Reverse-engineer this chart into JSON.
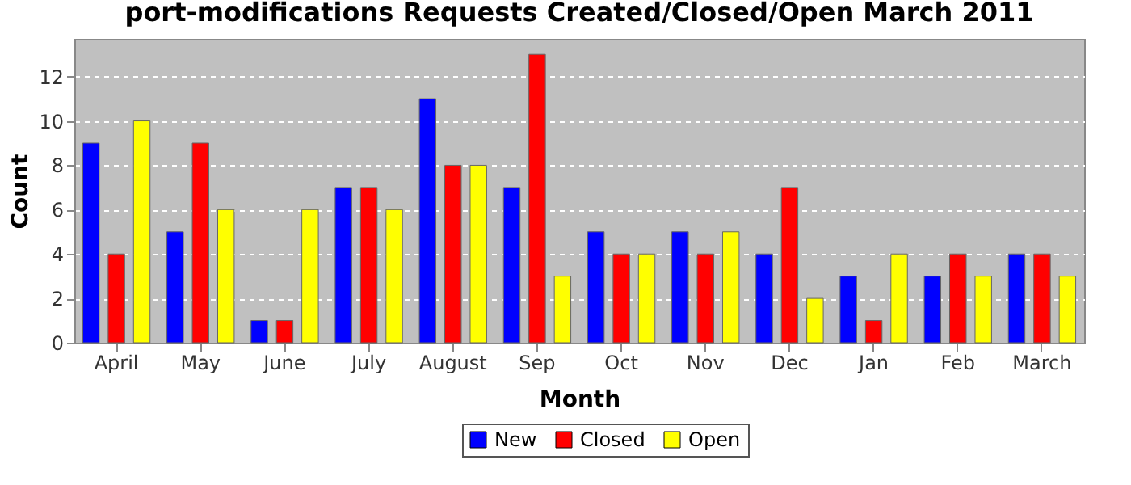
{
  "chart_data": {
    "type": "bar",
    "title": "port-modifications Requests Created/Closed/Open March 2011",
    "xlabel": "Month",
    "ylabel": "Count",
    "categories": [
      "April",
      "May",
      "June",
      "July",
      "August",
      "Sep",
      "Oct",
      "Nov",
      "Dec",
      "Jan",
      "Feb",
      "March"
    ],
    "series": [
      {
        "name": "New",
        "color": "#0000ff",
        "values": [
          9,
          5,
          1,
          7,
          11,
          7,
          5,
          5,
          4,
          3,
          3,
          4
        ]
      },
      {
        "name": "Closed",
        "color": "#ff0000",
        "values": [
          4,
          9,
          1,
          7,
          8,
          13,
          4,
          4,
          7,
          1,
          4,
          4
        ]
      },
      {
        "name": "Open",
        "color": "#ffff00",
        "values": [
          10,
          6,
          6,
          6,
          8,
          3,
          4,
          5,
          2,
          4,
          3,
          3
        ]
      }
    ],
    "ylim": [
      0,
      13.7
    ],
    "yticks": [
      0,
      2,
      4,
      6,
      8,
      10,
      12
    ],
    "grid": "y",
    "legend": "bottom"
  }
}
